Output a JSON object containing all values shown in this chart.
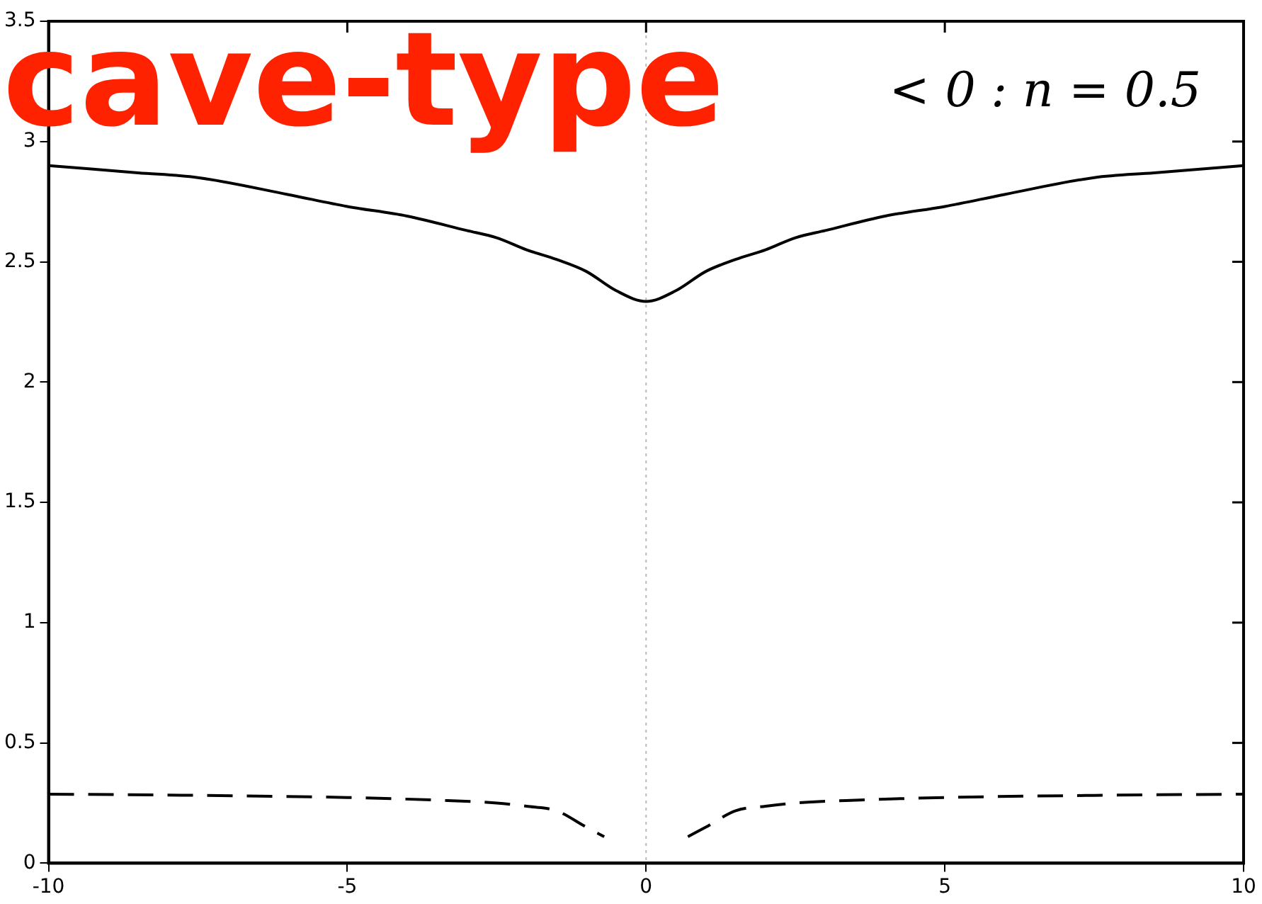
{
  "chart_data": {
    "type": "line",
    "annotations": [
      "cave-type",
      "< 0 : n = 0.5"
    ],
    "xlim": [
      -10,
      10
    ],
    "xticks": [
      -10,
      -5,
      0,
      5,
      10
    ],
    "ylim": [
      0,
      3.5
    ],
    "yticks": [
      0,
      0.5,
      1,
      1.5,
      2,
      2.5,
      3,
      3.5
    ],
    "grid": false,
    "legend": false,
    "marker": "none",
    "ref_lines": [
      {
        "axis": "x",
        "value": 0,
        "color": "#bbbbbb",
        "line_style": "dotted"
      }
    ],
    "series": [
      {
        "color": "#000000",
        "line_style": "solid",
        "x": [
          -10,
          -8.5,
          -7.5,
          -6,
          -5,
          -4,
          -3,
          -2.5,
          -2,
          -1.5,
          -1,
          -0.5,
          0,
          0.5,
          1,
          1.5,
          2,
          2.5,
          3,
          4,
          5,
          6,
          7.5,
          8.5,
          10
        ],
        "values": [
          2.9,
          2.87,
          2.85,
          2.78,
          2.73,
          2.69,
          2.63,
          2.6,
          2.55,
          2.51,
          2.46,
          2.38,
          2.335,
          2.38,
          2.46,
          2.51,
          2.55,
          2.6,
          2.63,
          2.69,
          2.73,
          2.78,
          2.85,
          2.87,
          2.9
        ]
      },
      {
        "color": "#000000",
        "line_style": "dashed",
        "x": [
          -10,
          -7.5,
          -5,
          -3.5,
          -2.5,
          -2,
          -1.5,
          -1,
          -0.7,
          0,
          0.7,
          1,
          1.5,
          2,
          2.5,
          3.5,
          5,
          7.5,
          10
        ],
        "values": [
          0.287,
          0.282,
          0.273,
          0.262,
          0.25,
          0.237,
          0.218,
          0.15,
          0.11,
          null,
          0.11,
          0.15,
          0.218,
          0.237,
          0.25,
          0.262,
          0.273,
          0.282,
          0.287
        ]
      }
    ]
  }
}
